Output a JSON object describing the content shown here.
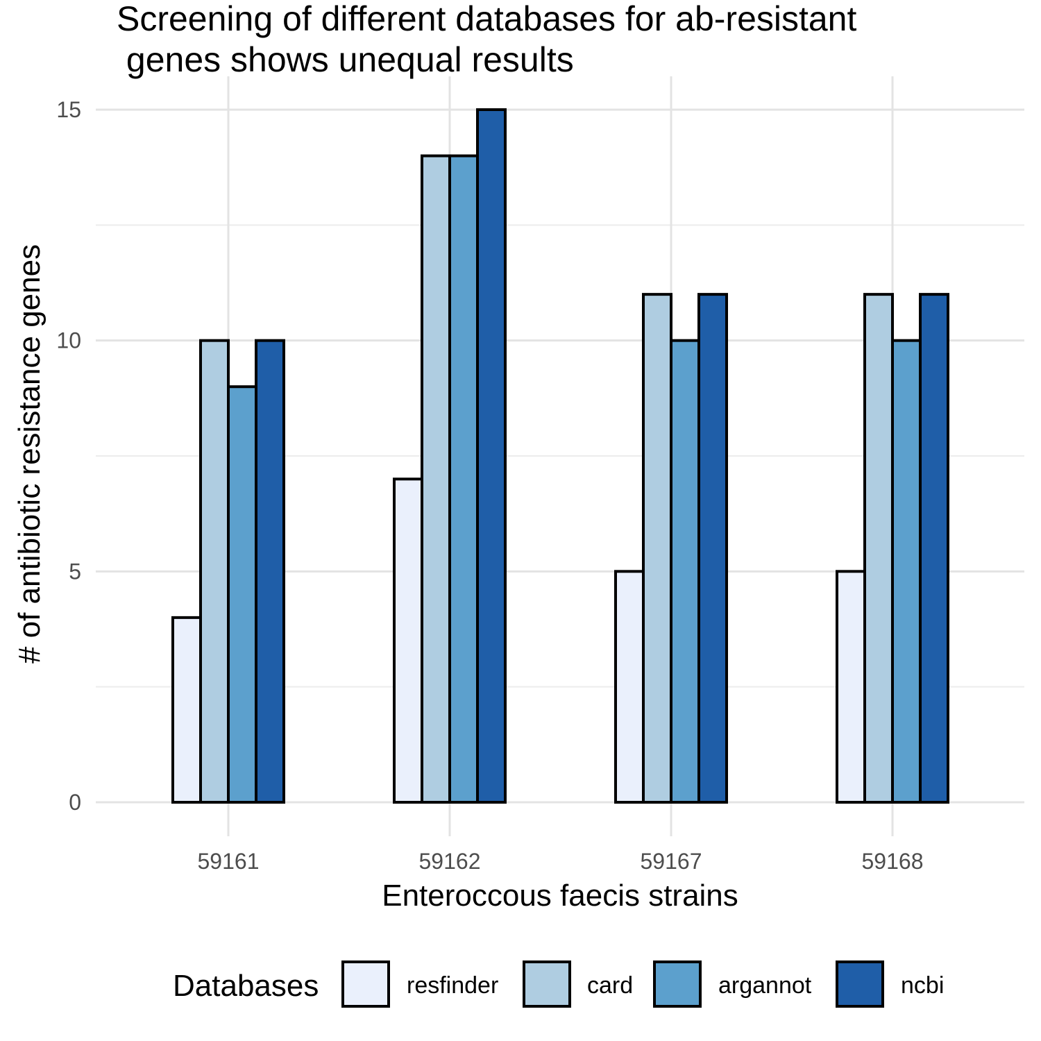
{
  "chart_data": {
    "type": "bar",
    "title_lines": [
      "Screening of different databases for ab-resistant",
      " genes shows unequal results"
    ],
    "xlabel": "Enteroccous faecis strains",
    "ylabel": "# of antibiotic resistance genes",
    "categories": [
      "59161",
      "59162",
      "59167",
      "59168"
    ],
    "series": [
      {
        "name": "resfinder",
        "color": "#eaf0fc",
        "values": [
          4,
          7,
          5,
          5
        ]
      },
      {
        "name": "card",
        "color": "#afcde1",
        "values": [
          10,
          14,
          11,
          11
        ]
      },
      {
        "name": "argannot",
        "color": "#5ca0cd",
        "values": [
          9,
          14,
          10,
          10
        ]
      },
      {
        "name": "ncbi",
        "color": "#1f5ea8",
        "values": [
          10,
          15,
          11,
          11
        ]
      }
    ],
    "ylim": [
      0,
      15
    ],
    "yticks": [
      0,
      5,
      10,
      15
    ],
    "ytick_labels": [
      "0",
      "5",
      "10",
      "15"
    ],
    "grid": true,
    "legend": {
      "title": "Databases",
      "position": "bottom"
    }
  }
}
